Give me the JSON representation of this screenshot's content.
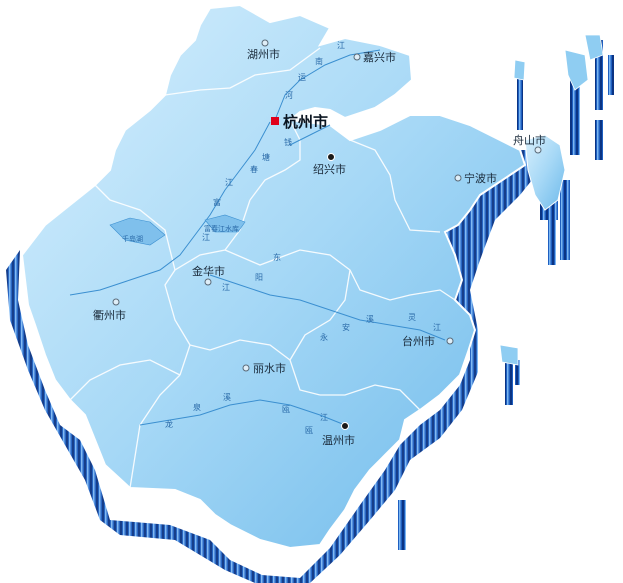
{
  "colors": {
    "land_light": "#cdeafb",
    "land_mid": "#8fcdf2",
    "land_dark": "#4aa6df",
    "extrude_dark": "#0b3f96",
    "extrude_mid": "#2a6fd0",
    "extrude_light": "#7fb8f0",
    "border": "#ffffff",
    "river": "#3b8fd0",
    "capital_marker": "#e0001b"
  },
  "capital": {
    "label": "杭州市",
    "marker": "square-marker"
  },
  "cities": [
    {
      "id": "huzhou",
      "label": "湖州市",
      "icon": "circle-marker"
    },
    {
      "id": "jiaxing",
      "label": "嘉兴市",
      "icon": "circle-marker"
    },
    {
      "id": "zhoushan",
      "label": "舟山市",
      "icon": "circle-marker"
    },
    {
      "id": "shaoxing",
      "label": "绍兴市",
      "icon": "dot-marker"
    },
    {
      "id": "ningbo",
      "label": "宁波市",
      "icon": "circle-marker"
    },
    {
      "id": "jinhua",
      "label": "金华市",
      "icon": "circle-marker"
    },
    {
      "id": "quzhou",
      "label": "衢州市",
      "icon": "circle-marker"
    },
    {
      "id": "taizhou",
      "label": "台州市",
      "icon": "circle-marker"
    },
    {
      "id": "lishui",
      "label": "丽水市",
      "icon": "circle-marker"
    },
    {
      "id": "wenzhou",
      "label": "温州市",
      "icon": "dot-marker"
    }
  ],
  "river_labels": [
    "江",
    "南",
    "运",
    "河",
    "钱",
    "塘",
    "江",
    "富",
    "春",
    "江",
    "阳",
    "东",
    "江",
    "永",
    "安",
    "溪",
    "灵",
    "江",
    "瓯",
    "江",
    "龙",
    "泉",
    "溪",
    "瓯"
  ],
  "lake_labels": [
    "千岛湖",
    "富春江水库"
  ]
}
